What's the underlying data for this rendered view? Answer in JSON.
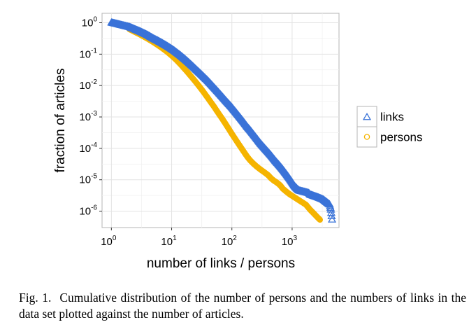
{
  "chart_data": {
    "type": "scatter",
    "xlabel": "number of links / persons",
    "ylabel": "fraction of articles",
    "x_scale": "log",
    "y_scale": "log",
    "xlim": [
      0.7,
      6000
    ],
    "ylim": [
      3e-07,
      2
    ],
    "x_ticks": [
      {
        "base": "10",
        "exp": "0",
        "value": 1
      },
      {
        "base": "10",
        "exp": "1",
        "value": 10
      },
      {
        "base": "10",
        "exp": "2",
        "value": 100
      },
      {
        "base": "10",
        "exp": "3",
        "value": 1000
      }
    ],
    "y_ticks": [
      {
        "base": "10",
        "exp": "0",
        "value": 1
      },
      {
        "base": "10",
        "exp": "-1",
        "value": 0.1
      },
      {
        "base": "10",
        "exp": "-2",
        "value": 0.01
      },
      {
        "base": "10",
        "exp": "-3",
        "value": 0.001
      },
      {
        "base": "10",
        "exp": "-4",
        "value": 0.0001
      },
      {
        "base": "10",
        "exp": "-5",
        "value": 1e-05
      },
      {
        "base": "10",
        "exp": "-6",
        "value": 1e-06
      }
    ],
    "grid": true,
    "legend_position": "right",
    "series": [
      {
        "name": "links",
        "marker": "triangle",
        "color": "#3a73d8",
        "points": [
          [
            1,
            1.0
          ],
          [
            2,
            0.72
          ],
          [
            3,
            0.52
          ],
          [
            4,
            0.4
          ],
          [
            5,
            0.31
          ],
          [
            6,
            0.26
          ],
          [
            7,
            0.22
          ],
          [
            8,
            0.19
          ],
          [
            9,
            0.165
          ],
          [
            10,
            0.145
          ],
          [
            11,
            0.128
          ],
          [
            12,
            0.113
          ],
          [
            14,
            0.09
          ],
          [
            16,
            0.073
          ],
          [
            18,
            0.06
          ],
          [
            20,
            0.05
          ],
          [
            23,
            0.039
          ],
          [
            26,
            0.031
          ],
          [
            30,
            0.024
          ],
          [
            35,
            0.018
          ],
          [
            40,
            0.014
          ],
          [
            45,
            0.011
          ],
          [
            50,
            0.0088
          ],
          [
            60,
            0.006
          ],
          [
            70,
            0.0043
          ],
          [
            80,
            0.0032
          ],
          [
            90,
            0.0025
          ],
          [
            100,
            0.002
          ],
          [
            120,
            0.0013
          ],
          [
            140,
            0.0009
          ],
          [
            160,
            0.00065
          ],
          [
            180,
            0.00048
          ],
          [
            200,
            0.00038
          ],
          [
            230,
            0.00027
          ],
          [
            260,
            0.0002
          ],
          [
            300,
            0.00014
          ],
          [
            350,
            0.0001
          ],
          [
            400,
            7.5e-05
          ],
          [
            450,
            5.8e-05
          ],
          [
            500,
            4.5e-05
          ],
          [
            550,
            3.6e-05
          ],
          [
            600,
            3e-05
          ],
          [
            700,
            2.1e-05
          ],
          [
            800,
            1.5e-05
          ],
          [
            900,
            1.1e-05
          ],
          [
            1000,
            8.2e-06
          ],
          [
            1100,
            6.2e-06
          ],
          [
            1200,
            5.2e-06
          ],
          [
            1300,
            4.5e-06
          ],
          [
            1900,
            3.7e-06
          ],
          [
            2000,
            3.3e-06
          ],
          [
            2700,
            2.7e-06
          ],
          [
            3300,
            2.3e-06
          ],
          [
            4200,
            1.6e-06
          ],
          [
            4400,
            1.1e-06
          ],
          [
            4600,
            5.3e-07
          ]
        ]
      },
      {
        "name": "persons",
        "marker": "circle",
        "color": "#f5b400",
        "points": [
          [
            2,
            0.62
          ],
          [
            3,
            0.42
          ],
          [
            4,
            0.31
          ],
          [
            5,
            0.24
          ],
          [
            6,
            0.19
          ],
          [
            7,
            0.155
          ],
          [
            8,
            0.128
          ],
          [
            9,
            0.107
          ],
          [
            10,
            0.09
          ],
          [
            11,
            0.076
          ],
          [
            12,
            0.065
          ],
          [
            14,
            0.048
          ],
          [
            16,
            0.036
          ],
          [
            18,
            0.028
          ],
          [
            20,
            0.022
          ],
          [
            23,
            0.016
          ],
          [
            26,
            0.012
          ],
          [
            30,
            0.0085
          ],
          [
            35,
            0.0057
          ],
          [
            40,
            0.004
          ],
          [
            45,
            0.0029
          ],
          [
            50,
            0.0022
          ],
          [
            60,
            0.0013
          ],
          [
            70,
            0.00085
          ],
          [
            80,
            0.00057
          ],
          [
            90,
            0.0004
          ],
          [
            100,
            0.00029
          ],
          [
            110,
            0.00022
          ],
          [
            120,
            0.00017
          ],
          [
            140,
            0.00011
          ],
          [
            160,
            7.5e-05
          ],
          [
            180,
            5.4e-05
          ],
          [
            200,
            4.2e-05
          ],
          [
            230,
            3.2e-05
          ],
          [
            260,
            2.6e-05
          ],
          [
            300,
            2.1e-05
          ],
          [
            350,
            1.7e-05
          ],
          [
            400,
            1.4e-05
          ],
          [
            450,
            1.1e-05
          ],
          [
            500,
            9.3e-06
          ],
          [
            550,
            8.3e-06
          ],
          [
            600,
            7.3e-06
          ],
          [
            650,
            6.3e-06
          ],
          [
            700,
            5.2e-06
          ],
          [
            800,
            4.2e-06
          ],
          [
            900,
            3.5e-06
          ],
          [
            1700,
            1.6e-06
          ],
          [
            2000,
            1.1e-06
          ],
          [
            2900,
            5.3e-07
          ]
        ]
      }
    ]
  },
  "caption": {
    "label": "Fig. 1.",
    "text": "Cumulative distribution of the number of persons and the numbers of links in the data set plotted against the number of articles."
  }
}
